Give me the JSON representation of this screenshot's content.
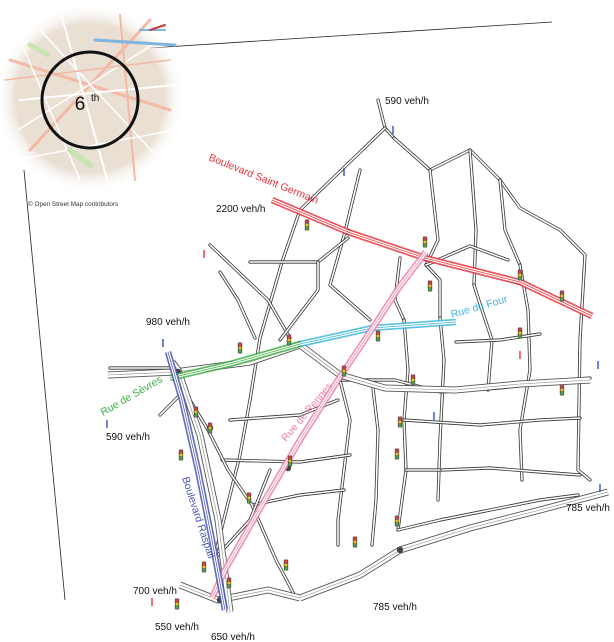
{
  "inset": {
    "district_label": "6",
    "district_sup": "th",
    "credit": "© Open Street Map contributors"
  },
  "streets": {
    "saint_germain": "Boulevard Saint Germain",
    "rue_du_four": "Rue du Four",
    "rue_de_sevres": "Rue de Sèvres",
    "rue_de_rennes": "Rue de Rennes",
    "raspail": "Boulevard Raspail"
  },
  "flows": {
    "top": "590 veh/h",
    "saint_germain": "2200 veh/h",
    "sevres_north": "980 veh/h",
    "sevres_west": "590 veh/h",
    "east": "785 veh/h",
    "south": "785 veh/h",
    "southwest": "700 veh/h",
    "raspail_south": "550 veh/h",
    "bottom": "650 veh/h"
  },
  "colors": {
    "saint_germain": "#e8343c",
    "rue_du_four": "#3fb6e0",
    "rue_de_sevres": "#3cb043",
    "rue_de_rennes": "#f07fa8",
    "raspail": "#4a55b0",
    "road": "#333333",
    "inset_bg": "#e9dfd3"
  }
}
